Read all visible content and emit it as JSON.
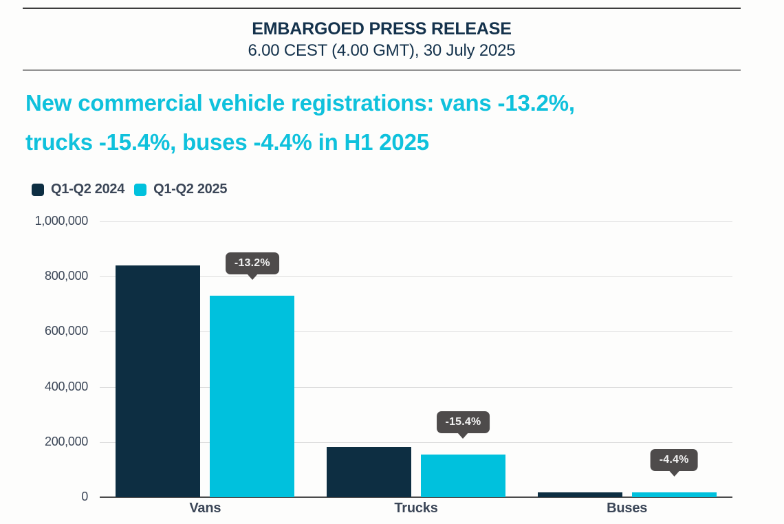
{
  "header": {
    "line1": "EMBARGOED PRESS RELEASE",
    "line2": "6.00 CEST (4.00 GMT), 30 July 2025"
  },
  "title": {
    "line1": "New commercial vehicle registrations: vans -13.2%,",
    "line2": "trucks -15.4%, buses -4.4% in H1 2025"
  },
  "colors": {
    "title_accent": "#0fc1dc",
    "series_2024": "#0d2e42",
    "series_2025": "#00c1dd",
    "header_text": "#14324c",
    "axis_text": "#3b4657",
    "gridline": "#dedede",
    "axis_line": "#4b4b4b",
    "tooltip_bg": "#4e4b4b"
  },
  "chart_data": {
    "type": "bar",
    "title": "New commercial vehicle registrations: vans -13.2%, trucks -15.4%, buses -4.4% in H1 2025",
    "categories": [
      "Vans",
      "Trucks",
      "Buses"
    ],
    "series": [
      {
        "name": "Q1-Q2 2024",
        "color": "#0d2e42",
        "values": [
          840000,
          182000,
          18500
        ]
      },
      {
        "name": "Q1-Q2 2025",
        "color": "#00c1dd",
        "values": [
          730000,
          154000,
          17700
        ]
      }
    ],
    "annotations": [
      {
        "category": "Vans",
        "series": "Q1-Q2 2025",
        "label": "-13.2%"
      },
      {
        "category": "Trucks",
        "series": "Q1-Q2 2025",
        "label": "-15.4%"
      },
      {
        "category": "Buses",
        "series": "Q1-Q2 2025",
        "label": "-4.4%"
      }
    ],
    "xlabel": "",
    "ylabel": "",
    "ylim": [
      0,
      1000000
    ],
    "ytick_interval": 200000,
    "ytick_labels": [
      "0",
      "200,000",
      "400,000",
      "600,000",
      "800,000",
      "1,000,000"
    ],
    "grid": true,
    "legend_position": "top-left"
  }
}
